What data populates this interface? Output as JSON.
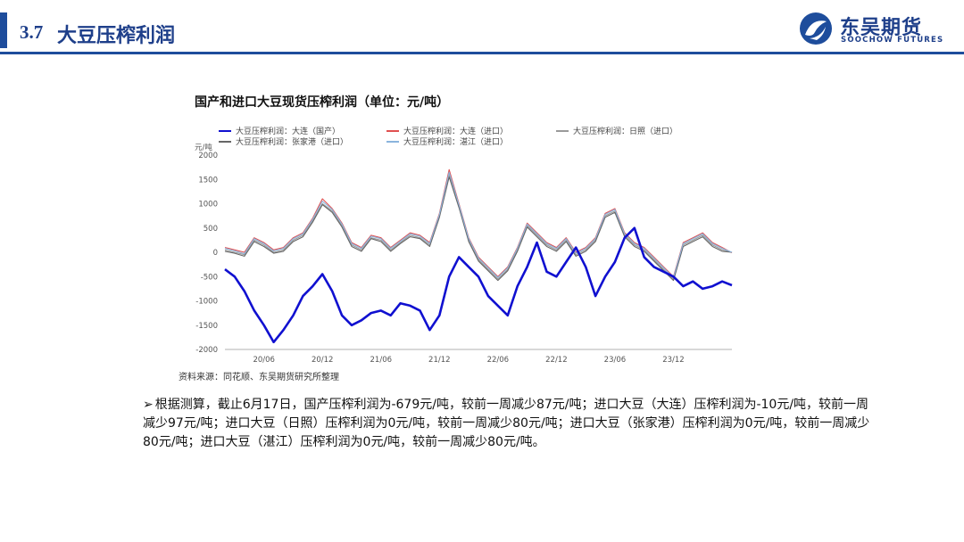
{
  "header": {
    "section_number": "3.7",
    "section_title": "大豆压榨利润",
    "brand_cn": "东吴期货",
    "brand_en": "SOOCHOW FUTURES"
  },
  "chart_title": "国产和进口大豆现货压榨利润（单位：元/吨）",
  "source": "资料来源：同花顺、东吴期货研究所整理",
  "body_bullet": "➢",
  "body_text": "根据测算，截止6月17日，国产压榨利润为-679元/吨，较前一周减少87元/吨；进口大豆（大连）压榨利润为-10元/吨，较前一周减少97元/吨；进口大豆（日照）压榨利润为0元/吨，较前一周减少80元/吨；进口大豆（张家港）压榨利润为0元/吨，较前一周减少80元/吨；进口大豆（湛江）压榨利润为0元/吨，较前一周减少80元/吨。",
  "chart_data": {
    "type": "line",
    "title": "国产和进口大豆现货压榨利润（单位：元/吨）",
    "ylabel": "元/吨",
    "ylim": [
      -2000,
      2000
    ],
    "yticks": [
      2000,
      1500,
      1000,
      500,
      0,
      -500,
      -1000,
      -1500,
      -2000
    ],
    "xticks": [
      "20/06",
      "20/12",
      "21/06",
      "21/12",
      "22/06",
      "22/12",
      "23/06",
      "23/12"
    ],
    "legend_placement": "top",
    "x": [
      "20/01",
      "20/03",
      "20/04",
      "20/05",
      "20/06",
      "20/07",
      "20/08",
      "20/09",
      "20/10",
      "20/11",
      "20/12",
      "21/01",
      "21/02",
      "21/03",
      "21/04",
      "21/05",
      "21/06",
      "21/07",
      "21/08",
      "21/09",
      "21/10",
      "21/11",
      "21/12",
      "22/01",
      "22/02",
      "22/03",
      "22/04",
      "22/05",
      "22/06",
      "22/07",
      "22/08",
      "22/09",
      "22/10",
      "22/11",
      "22/12",
      "23/01",
      "23/02",
      "23/03",
      "23/04",
      "23/05",
      "23/06",
      "23/07",
      "23/08",
      "23/09",
      "23/10",
      "23/11",
      "23/12",
      "24/01",
      "24/02",
      "24/03",
      "24/04",
      "24/05",
      "24/06"
    ],
    "series": [
      {
        "name": "大豆压榨利润：大连（国产）",
        "color": "#1010d0",
        "values": [
          -350,
          -500,
          -800,
          -1200,
          -1500,
          -1850,
          -1600,
          -1300,
          -900,
          -700,
          -450,
          -800,
          -1300,
          -1500,
          -1400,
          -1250,
          -1200,
          -1300,
          -1050,
          -1100,
          -1200,
          -1600,
          -1300,
          -500,
          -100,
          -300,
          -500,
          -900,
          -1100,
          -1300,
          -700,
          -300,
          200,
          -400,
          -500,
          -200,
          100,
          -300,
          -900,
          -500,
          -200,
          300,
          500,
          -100,
          -300,
          -400,
          -500,
          -700,
          -600,
          -750,
          -700,
          -600,
          -679
        ]
      },
      {
        "name": "大豆压榨利润：大连（进口）",
        "color": "#e05050",
        "values": [
          100,
          50,
          0,
          300,
          200,
          50,
          100,
          300,
          400,
          700,
          1100,
          900,
          600,
          200,
          100,
          350,
          300,
          100,
          250,
          400,
          350,
          200,
          800,
          1700,
          1000,
          300,
          -100,
          -300,
          -500,
          -300,
          100,
          600,
          400,
          200,
          100,
          300,
          0,
          100,
          300,
          800,
          900,
          400,
          200,
          100,
          -100,
          -300,
          -500,
          200,
          300,
          400,
          200,
          100,
          -10
        ]
      },
      {
        "name": "大豆压榨利润：日照（进口）",
        "color": "#9a9a9a",
        "values": [
          50,
          0,
          -50,
          250,
          150,
          0,
          50,
          250,
          350,
          650,
          1000,
          850,
          550,
          150,
          50,
          300,
          250,
          50,
          200,
          350,
          300,
          150,
          750,
          1600,
          950,
          250,
          -150,
          -350,
          -550,
          -350,
          50,
          550,
          350,
          150,
          50,
          250,
          -50,
          50,
          250,
          750,
          850,
          350,
          150,
          50,
          -150,
          -350,
          -550,
          150,
          250,
          350,
          150,
          50,
          0
        ]
      },
      {
        "name": "大豆压榨利润：张家港（进口）",
        "color": "#666666",
        "values": [
          20,
          -20,
          -80,
          220,
          120,
          -20,
          20,
          220,
          320,
          620,
          980,
          820,
          520,
          120,
          20,
          280,
          220,
          20,
          180,
          320,
          280,
          120,
          720,
          1550,
          920,
          220,
          -180,
          -380,
          -580,
          -380,
          20,
          520,
          320,
          120,
          20,
          220,
          -80,
          20,
          220,
          720,
          820,
          320,
          120,
          20,
          -180,
          -380,
          -580,
          120,
          220,
          320,
          120,
          20,
          0
        ]
      },
      {
        "name": "大豆压榨利润：湛江（进口）",
        "color": "#8ab4dd",
        "values": [
          80,
          30,
          -30,
          280,
          180,
          30,
          80,
          280,
          380,
          680,
          1050,
          880,
          580,
          180,
          80,
          330,
          280,
          80,
          230,
          380,
          330,
          180,
          780,
          1650,
          980,
          280,
          -120,
          -320,
          -520,
          -320,
          80,
          580,
          380,
          180,
          80,
          280,
          -20,
          80,
          280,
          780,
          880,
          380,
          180,
          80,
          -120,
          -320,
          -520,
          180,
          280,
          380,
          180,
          80,
          0
        ]
      }
    ]
  }
}
